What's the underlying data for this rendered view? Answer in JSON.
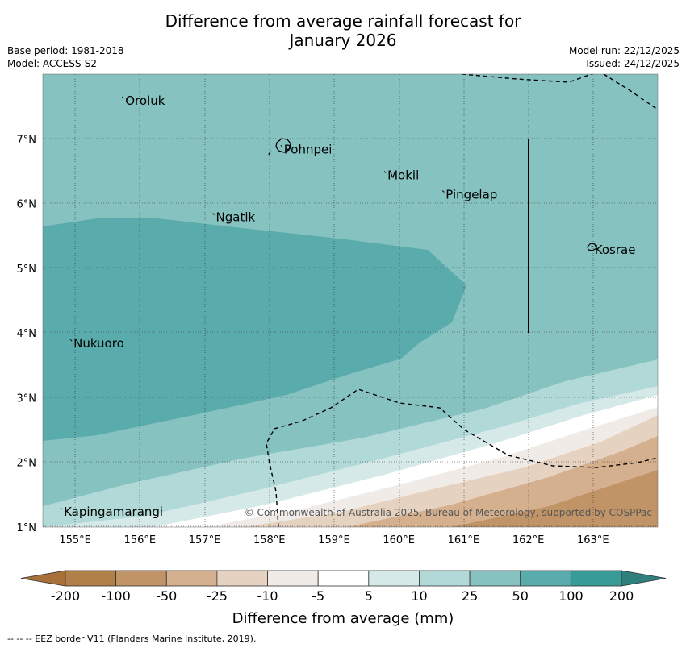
{
  "title_line1": "Difference from average rainfall forecast for",
  "title_line2": "January 2026",
  "meta_left": [
    "Base period: 1981-2018",
    "Model: ACCESS-S2"
  ],
  "meta_right": [
    "Model run: 22/12/2025",
    "Issued: 24/12/2025"
  ],
  "copyright": "© Commonwealth of Australia 2025, Bureau of Meteorology, supported by COSPPac",
  "lon_labels": [
    "155°E",
    "156°E",
    "157°E",
    "158°E",
    "159°E",
    "160°E",
    "161°E",
    "162°E",
    "163°E"
  ],
  "lat_labels": [
    "1°N",
    "2°N",
    "3°N",
    "4°N",
    "5°N",
    "6°N",
    "7°N"
  ],
  "places": [
    {
      "name": "Oroluk",
      "lon": 155.75,
      "lat": 7.6
    },
    {
      "name": "Pohnpei",
      "lon": 158.2,
      "lat": 6.85
    },
    {
      "name": "Mokil",
      "lon": 159.8,
      "lat": 6.45
    },
    {
      "name": "Pingelap",
      "lon": 160.7,
      "lat": 6.15
    },
    {
      "name": "Ngatik",
      "lon": 157.15,
      "lat": 5.8
    },
    {
      "name": "Kosrae",
      "lon": 163.0,
      "lat": 5.3
    },
    {
      "name": "Nukuoro",
      "lon": 154.95,
      "lat": 3.85
    },
    {
      "name": "Kapingamarangi",
      "lon": 154.8,
      "lat": 1.25
    }
  ],
  "colorbar": {
    "label": "Difference from average (mm)",
    "ticks": [
      "-200",
      "-100",
      "-50",
      "-25",
      "-10",
      "-5",
      "5",
      "10",
      "25",
      "50",
      "100",
      "200"
    ],
    "colors": [
      "#a8713a",
      "#b17f48",
      "#c09467",
      "#d5b08f",
      "#e6d2c0",
      "#f0ebe6",
      "#ffffff",
      "#d4e9e8",
      "#b0d9d7",
      "#86c2bf",
      "#5aabab",
      "#389b98",
      "#2f807c"
    ]
  },
  "footer": "--  --  -- EEZ border V11 (Flanders Marine Institute, 2019)."
}
